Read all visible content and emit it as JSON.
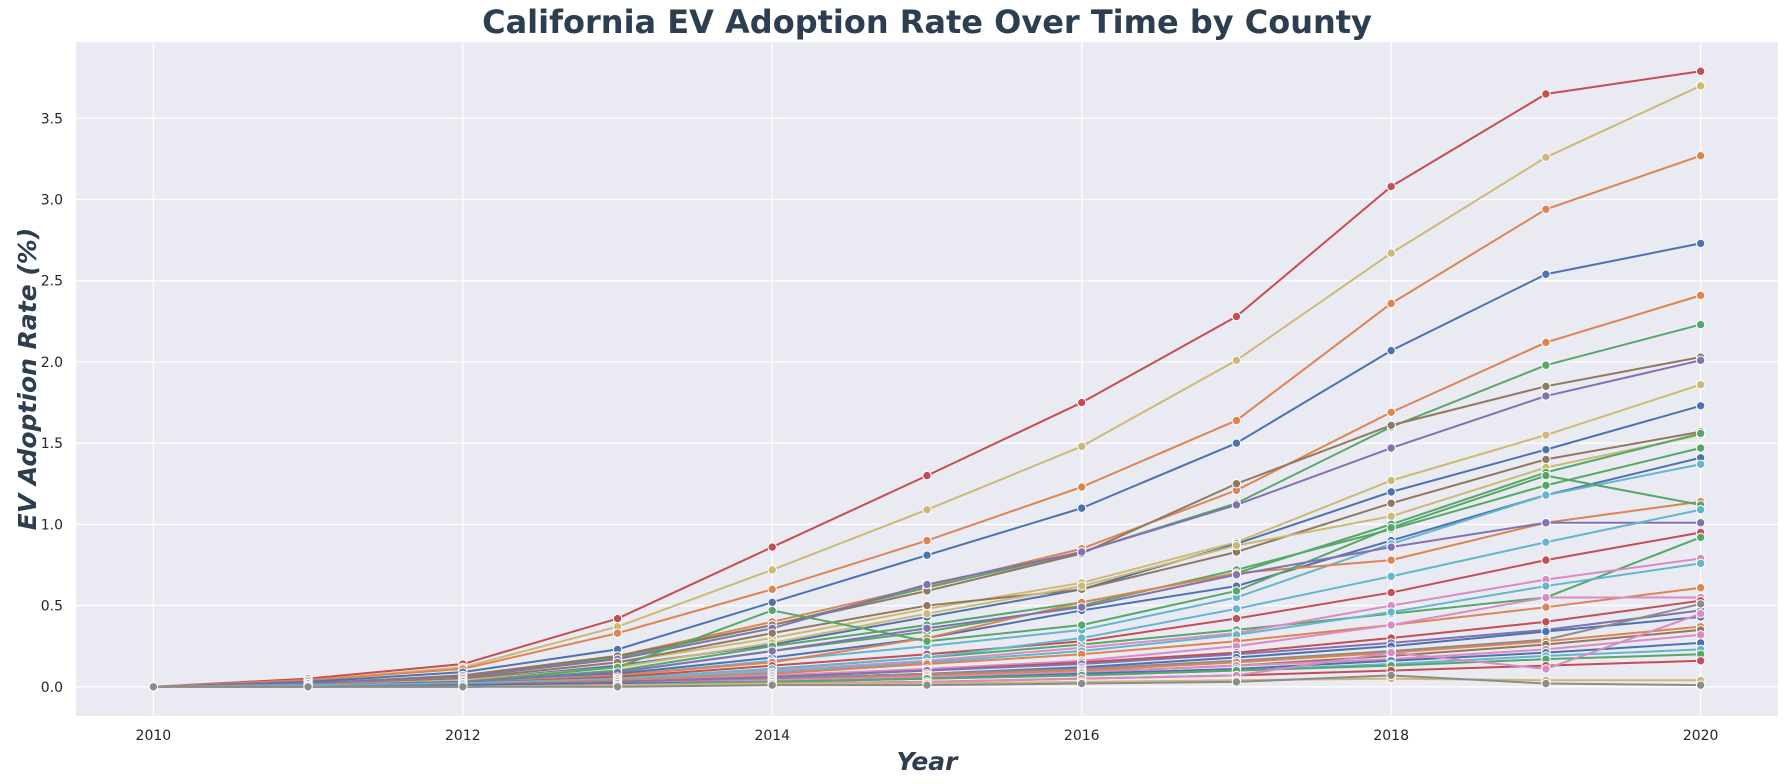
{
  "chart_data": {
    "type": "line",
    "title": "California EV Adoption Rate Over Time by County",
    "xlabel": "Year",
    "ylabel": "EV Adoption Rate (%)",
    "x": [
      2010,
      2011,
      2012,
      2013,
      2014,
      2015,
      2016,
      2017,
      2018,
      2019,
      2020
    ],
    "xlim": [
      2009.5,
      2020.5
    ],
    "ylim": [
      -0.18,
      3.97
    ],
    "xticks": [
      2010,
      2012,
      2014,
      2016,
      2018,
      2020
    ],
    "yticks": [
      0.0,
      0.5,
      1.0,
      1.5,
      2.0,
      2.5,
      3.0,
      3.5
    ],
    "ytick_labels": [
      "0.0",
      "0.5",
      "1.0",
      "1.5",
      "2.0",
      "2.5",
      "3.0",
      "3.5"
    ],
    "grid": true,
    "legend": "none",
    "background": "#eaeaf2",
    "series": [
      {
        "color": "#c44e52",
        "values": [
          0.0,
          0.05,
          0.14,
          0.42,
          0.86,
          1.3,
          1.75,
          2.28,
          3.08,
          3.65,
          3.79
        ]
      },
      {
        "color": "#ccb974",
        "values": [
          0.0,
          0.04,
          0.12,
          0.37,
          0.72,
          1.09,
          1.48,
          2.01,
          2.67,
          3.26,
          3.7
        ]
      },
      {
        "color": "#dd8452",
        "values": [
          0.0,
          0.04,
          0.11,
          0.33,
          0.6,
          0.9,
          1.23,
          1.64,
          2.36,
          2.94,
          3.27
        ]
      },
      {
        "color": "#4c72b0",
        "values": [
          0.0,
          0.03,
          0.09,
          0.23,
          0.52,
          0.81,
          1.1,
          1.5,
          2.07,
          2.54,
          2.73
        ]
      },
      {
        "color": "#dd8452",
        "values": [
          0.0,
          0.02,
          0.07,
          0.19,
          0.4,
          0.62,
          0.85,
          1.21,
          1.69,
          2.12,
          2.41
        ]
      },
      {
        "color": "#55a868",
        "values": [
          0.0,
          0.02,
          0.06,
          0.18,
          0.38,
          0.61,
          0.83,
          1.13,
          1.6,
          1.98,
          2.23
        ]
      },
      {
        "color": "#937860",
        "values": [
          0.0,
          0.02,
          0.07,
          0.19,
          0.38,
          0.59,
          0.82,
          1.25,
          1.61,
          1.85,
          2.03
        ]
      },
      {
        "color": "#8172b3",
        "values": [
          0.0,
          0.02,
          0.06,
          0.17,
          0.36,
          0.63,
          0.83,
          1.12,
          1.47,
          1.79,
          2.01
        ]
      },
      {
        "color": "#ccb974",
        "values": [
          0.0,
          0.01,
          0.05,
          0.15,
          0.3,
          0.48,
          0.64,
          0.89,
          1.27,
          1.55,
          1.86
        ]
      },
      {
        "color": "#4c72b0",
        "values": [
          0.0,
          0.01,
          0.04,
          0.13,
          0.26,
          0.43,
          0.6,
          0.88,
          1.2,
          1.46,
          1.73
        ]
      },
      {
        "color": "#937860",
        "values": [
          0.0,
          0.01,
          0.05,
          0.15,
          0.33,
          0.5,
          0.6,
          0.83,
          1.13,
          1.4,
          1.57
        ]
      },
      {
        "color": "#ccb974",
        "values": [
          0.0,
          0.01,
          0.04,
          0.12,
          0.27,
          0.45,
          0.62,
          0.87,
          1.05,
          1.35,
          1.55
        ]
      },
      {
        "color": "#55a868",
        "values": [
          0.0,
          0.01,
          0.03,
          0.1,
          0.25,
          0.38,
          0.52,
          0.7,
          1.0,
          1.32,
          1.56
        ]
      },
      {
        "color": "#55a868",
        "values": [
          0.0,
          0.01,
          0.03,
          0.09,
          0.22,
          0.34,
          0.5,
          0.72,
          0.97,
          1.24,
          1.47
        ]
      },
      {
        "color": "#4c72b0",
        "values": [
          0.0,
          0.01,
          0.03,
          0.08,
          0.18,
          0.3,
          0.47,
          0.62,
          0.9,
          1.18,
          1.41
        ]
      },
      {
        "color": "#64b5cd",
        "values": [
          0.0,
          0.01,
          0.03,
          0.07,
          0.16,
          0.25,
          0.35,
          0.55,
          0.88,
          1.18,
          1.37
        ]
      },
      {
        "color": "#dd8452",
        "values": [
          0.0,
          0.01,
          0.02,
          0.07,
          0.15,
          0.3,
          0.52,
          0.7,
          0.78,
          1.01,
          1.14
        ]
      },
      {
        "color": "#55a868",
        "values": [
          0.0,
          0.01,
          0.03,
          0.12,
          0.47,
          0.28,
          0.38,
          0.59,
          0.98,
          1.3,
          1.12
        ]
      },
      {
        "color": "#8172b3",
        "values": [
          0.0,
          0.01,
          0.03,
          0.09,
          0.22,
          0.36,
          0.49,
          0.69,
          0.86,
          1.01,
          1.01
        ]
      },
      {
        "color": "#c44e52",
        "values": [
          0.0,
          0.01,
          0.02,
          0.06,
          0.13,
          0.2,
          0.28,
          0.42,
          0.58,
          0.78,
          0.95
        ]
      },
      {
        "color": "#55a868",
        "values": [
          0.0,
          0.01,
          0.02,
          0.05,
          0.11,
          0.18,
          0.26,
          0.35,
          0.45,
          0.55,
          0.92
        ]
      },
      {
        "color": "#da8bc3",
        "values": [
          0.0,
          0.01,
          0.02,
          0.05,
          0.1,
          0.16,
          0.24,
          0.33,
          0.5,
          0.66,
          0.79
        ]
      },
      {
        "color": "#64b5cd",
        "values": [
          0.0,
          0.01,
          0.02,
          0.05,
          0.11,
          0.18,
          0.3,
          0.48,
          0.68,
          0.89,
          1.09
        ]
      },
      {
        "color": "#64b5cd",
        "values": [
          0.0,
          0.0,
          0.02,
          0.04,
          0.09,
          0.15,
          0.22,
          0.32,
          0.46,
          0.62,
          0.76
        ]
      },
      {
        "color": "#dd8452",
        "values": [
          0.0,
          0.0,
          0.01,
          0.04,
          0.08,
          0.14,
          0.2,
          0.28,
          0.38,
          0.49,
          0.61
        ]
      },
      {
        "color": "#da8bc3",
        "values": [
          0.0,
          0.0,
          0.01,
          0.03,
          0.07,
          0.11,
          0.16,
          0.25,
          0.38,
          0.55,
          0.55
        ]
      },
      {
        "color": "#c44e52",
        "values": [
          0.0,
          0.0,
          0.01,
          0.03,
          0.06,
          0.1,
          0.15,
          0.21,
          0.3,
          0.4,
          0.53
        ]
      },
      {
        "color": "#8172b3",
        "values": [
          0.0,
          0.0,
          0.01,
          0.03,
          0.06,
          0.1,
          0.14,
          0.2,
          0.27,
          0.35,
          0.47
        ]
      },
      {
        "color": "#4c72b0",
        "values": [
          0.0,
          0.0,
          0.01,
          0.02,
          0.05,
          0.08,
          0.12,
          0.18,
          0.25,
          0.34,
          0.43
        ]
      },
      {
        "color": "#8c8c8c",
        "values": [
          0.0,
          0.0,
          0.01,
          0.02,
          0.05,
          0.08,
          0.11,
          0.16,
          0.22,
          0.29,
          0.51
        ]
      },
      {
        "color": "#dd8452",
        "values": [
          0.0,
          0.0,
          0.01,
          0.02,
          0.04,
          0.07,
          0.1,
          0.15,
          0.21,
          0.28,
          0.37
        ]
      },
      {
        "color": "#937860",
        "values": [
          0.0,
          0.0,
          0.01,
          0.02,
          0.04,
          0.06,
          0.09,
          0.13,
          0.19,
          0.26,
          0.35
        ]
      },
      {
        "color": "#da8bc3",
        "values": [
          0.0,
          0.0,
          0.01,
          0.02,
          0.04,
          0.06,
          0.09,
          0.13,
          0.17,
          0.23,
          0.32
        ]
      },
      {
        "color": "#4c72b0",
        "values": [
          0.0,
          0.0,
          0.01,
          0.02,
          0.03,
          0.05,
          0.08,
          0.11,
          0.16,
          0.21,
          0.27
        ]
      },
      {
        "color": "#64b5cd",
        "values": [
          0.0,
          0.0,
          0.0,
          0.01,
          0.03,
          0.05,
          0.07,
          0.1,
          0.14,
          0.19,
          0.23
        ]
      },
      {
        "color": "#55a868",
        "values": [
          0.0,
          0.0,
          0.0,
          0.01,
          0.03,
          0.05,
          0.07,
          0.1,
          0.13,
          0.17,
          0.2
        ]
      },
      {
        "color": "#c44e52",
        "values": [
          0.0,
          0.0,
          0.0,
          0.01,
          0.02,
          0.03,
          0.05,
          0.07,
          0.1,
          0.13,
          0.16
        ]
      },
      {
        "color": "#da8bc3",
        "values": [
          0.0,
          0.0,
          0.0,
          0.01,
          0.02,
          0.03,
          0.05,
          0.07,
          0.21,
          0.11,
          0.45
        ]
      },
      {
        "color": "#ccb974",
        "values": [
          0.0,
          0.0,
          0.0,
          0.01,
          0.02,
          0.02,
          0.03,
          0.04,
          0.05,
          0.04,
          0.04
        ]
      },
      {
        "color": "#8c8c8c",
        "values": [
          0.0,
          0.0,
          0.0,
          0.0,
          0.01,
          0.01,
          0.02,
          0.03,
          0.07,
          0.02,
          0.01
        ]
      }
    ]
  }
}
